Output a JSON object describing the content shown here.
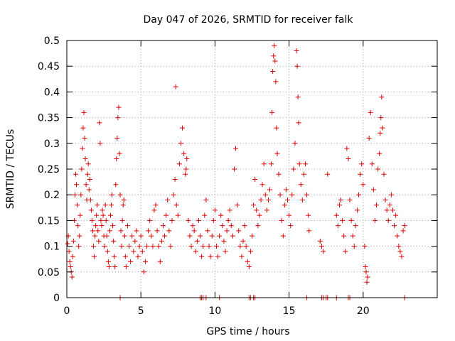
{
  "chart_data": {
    "type": "scatter",
    "title": "Day 047 of 2026, SRMTID for receiver falk",
    "xlabel": "GPS time / hours",
    "ylabel": "SRMTID / TECUs",
    "xlim": [
      0,
      25
    ],
    "ylim": [
      0,
      0.5
    ],
    "xticks": [
      0,
      5,
      10,
      15,
      20
    ],
    "xtick_labels": [
      "0",
      "5",
      "10",
      "15",
      "20"
    ],
    "yticks": [
      0,
      0.05,
      0.1,
      0.15,
      0.2,
      0.25,
      0.3,
      0.35,
      0.4,
      0.45,
      0.5
    ],
    "ytick_labels": [
      "0",
      "0.05",
      "0.1",
      "0.15",
      "0.2",
      "0.25",
      "0.3",
      "0.35",
      "0.4",
      "0.45",
      "0.5"
    ],
    "grid": true,
    "marker": "+",
    "color": "#dd0000",
    "series": [
      {
        "name": "SRMTID",
        "points": [
          [
            0.05,
            0.105
          ],
          [
            0.1,
            0.12
          ],
          [
            0.15,
            0.09
          ],
          [
            0.2,
            0.07
          ],
          [
            0.25,
            0.06
          ],
          [
            0.3,
            0.05
          ],
          [
            0.35,
            0.04
          ],
          [
            0.4,
            0.08
          ],
          [
            0.45,
            0.11
          ],
          [
            0.5,
            0.15
          ],
          [
            0.55,
            0.2
          ],
          [
            0.6,
            0.24
          ],
          [
            0.65,
            0.22
          ],
          [
            0.7,
            0.18
          ],
          [
            0.75,
            0.14
          ],
          [
            0.8,
            0.1
          ],
          [
            0.85,
            0.12
          ],
          [
            0.9,
            0.16
          ],
          [
            0.95,
            0.2
          ],
          [
            1.0,
            0.25
          ],
          [
            1.05,
            0.29
          ],
          [
            1.1,
            0.33
          ],
          [
            1.15,
            0.36
          ],
          [
            1.2,
            0.31
          ],
          [
            1.25,
            0.27
          ],
          [
            1.3,
            0.22
          ],
          [
            1.35,
            0.19
          ],
          [
            1.4,
            0.24
          ],
          [
            1.45,
            0.26
          ],
          [
            1.5,
            0.21
          ],
          [
            1.55,
            0.23
          ],
          [
            1.6,
            0.19
          ],
          [
            1.65,
            0.17
          ],
          [
            1.7,
            0.15
          ],
          [
            1.75,
            0.13
          ],
          [
            1.8,
            0.1
          ],
          [
            1.85,
            0.08
          ],
          [
            1.9,
            0.12
          ],
          [
            1.95,
            0.14
          ],
          [
            2.0,
            0.16
          ],
          [
            2.05,
            0.18
          ],
          [
            2.1,
            0.13
          ],
          [
            2.15,
            0.11
          ],
          [
            2.2,
            0.34
          ],
          [
            2.25,
            0.3
          ],
          [
            2.3,
            0.15
          ],
          [
            2.35,
            0.14
          ],
          [
            2.4,
            0.17
          ],
          [
            2.45,
            0.16
          ],
          [
            2.5,
            0.12
          ],
          [
            2.55,
            0.1
          ],
          [
            2.6,
            0.18
          ],
          [
            2.65,
            0.15
          ],
          [
            2.7,
            0.12
          ],
          [
            2.75,
            0.09
          ],
          [
            2.8,
            0.07
          ],
          [
            2.85,
            0.06
          ],
          [
            2.9,
            0.13
          ],
          [
            2.95,
            0.16
          ],
          [
            3.0,
            0.18
          ],
          [
            3.05,
            0.2
          ],
          [
            3.1,
            0.14
          ],
          [
            3.15,
            0.11
          ],
          [
            3.2,
            0.08
          ],
          [
            3.25,
            0.06
          ],
          [
            3.3,
            0.22
          ],
          [
            3.35,
            0.27
          ],
          [
            3.4,
            0.31
          ],
          [
            3.45,
            0.35
          ],
          [
            3.5,
            0.37
          ],
          [
            3.55,
            0.28
          ],
          [
            3.6,
            0.2
          ],
          [
            3.65,
            0.13
          ],
          [
            3.7,
            0.1
          ],
          [
            3.75,
            0.15
          ],
          [
            3.8,
            0.18
          ],
          [
            3.85,
            0.19
          ],
          [
            3.9,
            0.12
          ],
          [
            3.95,
            0.08
          ],
          [
            4.0,
            0.06
          ],
          [
            4.1,
            0.14
          ],
          [
            4.2,
            0.1
          ],
          [
            4.3,
            0.07
          ],
          [
            4.4,
            0.12
          ],
          [
            4.5,
            0.09
          ],
          [
            4.6,
            0.11
          ],
          [
            4.7,
            0.13
          ],
          [
            4.8,
            0.08
          ],
          [
            4.9,
            0.1
          ],
          [
            5.0,
            0.12
          ],
          [
            5.1,
            0.09
          ],
          [
            5.2,
            0.05
          ],
          [
            5.3,
            0.07
          ],
          [
            5.4,
            0.1
          ],
          [
            5.5,
            0.13
          ],
          [
            5.6,
            0.15
          ],
          [
            5.7,
            0.12
          ],
          [
            5.8,
            0.1
          ],
          [
            5.9,
            0.17
          ],
          [
            6.0,
            0.18
          ],
          [
            6.1,
            0.13
          ],
          [
            6.2,
            0.1
          ],
          [
            6.3,
            0.07
          ],
          [
            6.4,
            0.11
          ],
          [
            6.5,
            0.14
          ],
          [
            6.6,
            0.12
          ],
          [
            6.7,
            0.16
          ],
          [
            6.8,
            0.19
          ],
          [
            6.9,
            0.13
          ],
          [
            7.0,
            0.1
          ],
          [
            7.1,
            0.15
          ],
          [
            7.2,
            0.2
          ],
          [
            7.3,
            0.23
          ],
          [
            7.4,
            0.18
          ],
          [
            7.5,
            0.16
          ],
          [
            7.6,
            0.26
          ],
          [
            7.7,
            0.3
          ],
          [
            7.8,
            0.33
          ],
          [
            7.9,
            0.28
          ],
          [
            8.0,
            0.24
          ],
          [
            7.35,
            0.41
          ],
          [
            8.05,
            0.25
          ],
          [
            8.1,
            0.27
          ],
          [
            8.2,
            0.15
          ],
          [
            8.3,
            0.12
          ],
          [
            8.4,
            0.1
          ],
          [
            8.5,
            0.14
          ],
          [
            8.6,
            0.13
          ],
          [
            8.7,
            0.09
          ],
          [
            8.8,
            0.11
          ],
          [
            8.9,
            0.15
          ],
          [
            9.0,
            0.12
          ],
          [
            9.1,
            0.08
          ],
          [
            9.2,
            0.1
          ],
          [
            9.3,
            0.16
          ],
          [
            9.4,
            0.19
          ],
          [
            9.5,
            0.13
          ],
          [
            9.6,
            0.1
          ],
          [
            9.7,
            0.08
          ],
          [
            9.8,
            0.12
          ],
          [
            9.9,
            0.15
          ],
          [
            10.0,
            0.17
          ],
          [
            10.1,
            0.1
          ],
          [
            10.2,
            0.08
          ],
          [
            10.3,
            0.12
          ],
          [
            10.4,
            0.16
          ],
          [
            10.5,
            0.14
          ],
          [
            10.6,
            0.11
          ],
          [
            10.7,
            0.09
          ],
          [
            10.8,
            0.13
          ],
          [
            10.9,
            0.15
          ],
          [
            11.0,
            0.17
          ],
          [
            11.1,
            0.14
          ],
          [
            11.2,
            0.12
          ],
          [
            11.3,
            0.25
          ],
          [
            11.4,
            0.29
          ],
          [
            11.5,
            0.18
          ],
          [
            11.6,
            0.13
          ],
          [
            11.7,
            0.1
          ],
          [
            11.8,
            0.08
          ],
          [
            11.9,
            0.11
          ],
          [
            12.0,
            0.14
          ],
          [
            12.1,
            0.1
          ],
          [
            12.2,
            0.07
          ],
          [
            12.3,
            0.06
          ],
          [
            12.4,
            0.09
          ],
          [
            12.5,
            0.12
          ],
          [
            12.6,
            0.18
          ],
          [
            12.7,
            0.23
          ],
          [
            12.8,
            0.17
          ],
          [
            12.9,
            0.14
          ],
          [
            13.0,
            0.16
          ],
          [
            13.1,
            0.19
          ],
          [
            13.2,
            0.22
          ],
          [
            13.3,
            0.26
          ],
          [
            13.4,
            0.2
          ],
          [
            13.5,
            0.17
          ],
          [
            13.6,
            0.19
          ],
          [
            13.7,
            0.21
          ],
          [
            13.8,
            0.26
          ],
          [
            13.85,
            0.36
          ],
          [
            13.9,
            0.44
          ],
          [
            13.95,
            0.47
          ],
          [
            14.0,
            0.49
          ],
          [
            14.05,
            0.46
          ],
          [
            14.1,
            0.42
          ],
          [
            14.15,
            0.33
          ],
          [
            14.2,
            0.28
          ],
          [
            14.3,
            0.24
          ],
          [
            14.4,
            0.2
          ],
          [
            14.5,
            0.15
          ],
          [
            14.6,
            0.12
          ],
          [
            14.7,
            0.18
          ],
          [
            14.8,
            0.21
          ],
          [
            14.9,
            0.19
          ],
          [
            15.0,
            0.16
          ],
          [
            15.1,
            0.14
          ],
          [
            15.2,
            0.2
          ],
          [
            15.3,
            0.25
          ],
          [
            15.4,
            0.3
          ],
          [
            15.5,
            0.48
          ],
          [
            15.55,
            0.45
          ],
          [
            15.6,
            0.39
          ],
          [
            15.65,
            0.34
          ],
          [
            15.7,
            0.26
          ],
          [
            15.8,
            0.22
          ],
          [
            15.9,
            0.19
          ],
          [
            16.0,
            0.24
          ],
          [
            16.1,
            0.26
          ],
          [
            16.2,
            0.2
          ],
          [
            16.3,
            0.16
          ],
          [
            16.35,
            0.13
          ],
          [
            17.1,
            0.11
          ],
          [
            17.2,
            0.1
          ],
          [
            17.3,
            0.09
          ],
          [
            17.6,
            0.24
          ],
          [
            18.2,
            0.16
          ],
          [
            18.3,
            0.14
          ],
          [
            18.4,
            0.18
          ],
          [
            18.5,
            0.19
          ],
          [
            18.6,
            0.15
          ],
          [
            18.7,
            0.12
          ],
          [
            18.8,
            0.09
          ],
          [
            18.9,
            0.29
          ],
          [
            19.0,
            0.27
          ],
          [
            19.1,
            0.19
          ],
          [
            19.2,
            0.15
          ],
          [
            19.3,
            0.12
          ],
          [
            19.4,
            0.1
          ],
          [
            19.5,
            0.14
          ],
          [
            19.6,
            0.17
          ],
          [
            19.7,
            0.2
          ],
          [
            19.8,
            0.24
          ],
          [
            19.9,
            0.26
          ],
          [
            20.0,
            0.22
          ],
          [
            20.1,
            0.1
          ],
          [
            20.15,
            0.06
          ],
          [
            20.2,
            0.05
          ],
          [
            20.25,
            0.03
          ],
          [
            20.3,
            0.04
          ],
          [
            20.4,
            0.31
          ],
          [
            20.5,
            0.36
          ],
          [
            20.6,
            0.26
          ],
          [
            20.7,
            0.21
          ],
          [
            20.8,
            0.15
          ],
          [
            20.9,
            0.18
          ],
          [
            21.0,
            0.25
          ],
          [
            21.1,
            0.28
          ],
          [
            21.15,
            0.32
          ],
          [
            21.2,
            0.35
          ],
          [
            21.25,
            0.39
          ],
          [
            21.3,
            0.33
          ],
          [
            21.4,
            0.24
          ],
          [
            21.5,
            0.19
          ],
          [
            21.6,
            0.17
          ],
          [
            21.7,
            0.15
          ],
          [
            21.8,
            0.18
          ],
          [
            21.9,
            0.2
          ],
          [
            22.0,
            0.17
          ],
          [
            22.1,
            0.14
          ],
          [
            22.2,
            0.16
          ],
          [
            22.3,
            0.12
          ],
          [
            22.4,
            0.1
          ],
          [
            22.5,
            0.09
          ],
          [
            22.6,
            0.08
          ],
          [
            22.7,
            0.13
          ],
          [
            22.8,
            0.14
          ],
          [
            3.6,
            0.0
          ],
          [
            9.0,
            0.0
          ],
          [
            9.1,
            0.0
          ],
          [
            9.2,
            0.0
          ],
          [
            9.4,
            0.0
          ],
          [
            10.3,
            0.0
          ],
          [
            12.3,
            0.0
          ],
          [
            12.4,
            0.0
          ],
          [
            12.6,
            0.0
          ],
          [
            12.7,
            0.0
          ],
          [
            16.2,
            0.0
          ],
          [
            17.2,
            0.0
          ],
          [
            17.3,
            0.0
          ],
          [
            17.5,
            0.0
          ],
          [
            17.6,
            0.0
          ],
          [
            18.2,
            0.0
          ],
          [
            19.0,
            0.0
          ],
          [
            19.1,
            0.0
          ],
          [
            22.8,
            0.0
          ]
        ]
      }
    ]
  }
}
